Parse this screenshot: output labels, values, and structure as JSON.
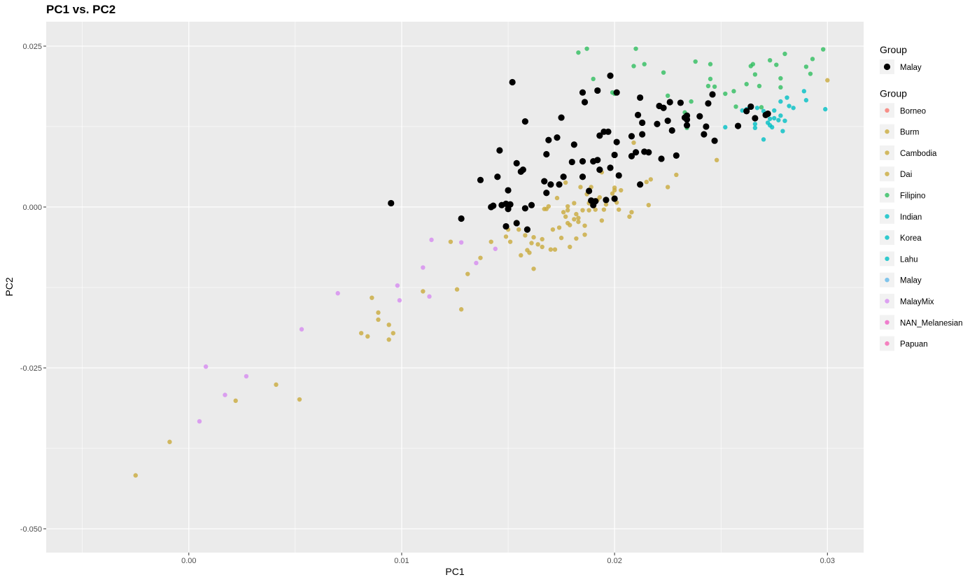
{
  "chart_data": {
    "type": "scatter",
    "title": "PC1 vs. PC2",
    "xlabel": "PC1",
    "ylabel": "PC2",
    "xlim": [
      -0.0067,
      0.0317
    ],
    "ylim": [
      -0.0537,
      0.0288
    ],
    "x_ticks": [
      0.0,
      0.01,
      0.02,
      0.03
    ],
    "x_tick_labels": [
      "0.00",
      "0.01",
      "0.02",
      "0.03"
    ],
    "y_ticks": [
      0.025,
      0.0,
      -0.025,
      -0.05
    ],
    "y_tick_labels": [
      "0.025",
      "0.000",
      "-0.025",
      "-0.050"
    ],
    "grid": true,
    "legend_position": "right",
    "legends": [
      {
        "title": "Group",
        "entries": [
          {
            "label": "Malay",
            "color": "#000000",
            "shape": "large"
          }
        ]
      },
      {
        "title": "Group",
        "entries": [
          {
            "label": "Borneo",
            "color": "#F8766D"
          },
          {
            "label": "Burm",
            "color": "#C9AA3C"
          },
          {
            "label": "Cambodia",
            "color": "#C9AA3C"
          },
          {
            "label": "Dai",
            "color": "#C9AA3C"
          },
          {
            "label": "Filipino",
            "color": "#2FBE5F"
          },
          {
            "label": "Indian",
            "color": "#00BFC4"
          },
          {
            "label": "Korea",
            "color": "#00BFC4"
          },
          {
            "label": "Lahu",
            "color": "#00BFC4"
          },
          {
            "label": "Malay",
            "color": "#61B8E8"
          },
          {
            "label": "MalayMix",
            "color": "#D68BF0"
          },
          {
            "label": "NAN_Melanesian",
            "color": "#EE5FC3"
          },
          {
            "label": "Papuan",
            "color": "#F565B2"
          }
        ]
      }
    ],
    "series": [
      {
        "name": "Malay",
        "color": "#000000",
        "size": "large",
        "points": [
          [
            0.0095,
            0.0006
          ],
          [
            0.0128,
            -0.0018
          ],
          [
            0.0137,
            0.0042
          ],
          [
            0.0142,
            0.0
          ],
          [
            0.0143,
            0.0002
          ],
          [
            0.0145,
            0.0047
          ],
          [
            0.0146,
            0.0088
          ],
          [
            0.0147,
            0.0003
          ],
          [
            0.0149,
            0.0005
          ],
          [
            0.0149,
            -0.003
          ],
          [
            0.015,
            0.0026
          ],
          [
            0.015,
            -0.0003
          ],
          [
            0.0151,
            0.0004
          ],
          [
            0.0152,
            0.0194
          ],
          [
            0.0154,
            0.0068
          ],
          [
            0.0154,
            -0.0025
          ],
          [
            0.0156,
            0.0055
          ],
          [
            0.0157,
            0.0058
          ],
          [
            0.0158,
            0.0133
          ],
          [
            0.0158,
            -0.0002
          ],
          [
            0.0159,
            -0.0035
          ],
          [
            0.0161,
            0.0003
          ],
          [
            0.0167,
            0.004
          ],
          [
            0.0168,
            0.0082
          ],
          [
            0.0168,
            0.0022
          ],
          [
            0.0169,
            0.0104
          ],
          [
            0.017,
            0.0035
          ],
          [
            0.0173,
            0.0108
          ],
          [
            0.0174,
            0.0035
          ],
          [
            0.0175,
            0.0139
          ],
          [
            0.0176,
            0.0047
          ],
          [
            0.018,
            0.007
          ],
          [
            0.0181,
            0.0097
          ],
          [
            0.0185,
            0.0071
          ],
          [
            0.0185,
            0.0047
          ],
          [
            0.0185,
            0.0178
          ],
          [
            0.0186,
            0.0163
          ],
          [
            0.0188,
            0.0025
          ],
          [
            0.0189,
            0.001
          ],
          [
            0.019,
            0.0071
          ],
          [
            0.019,
            0.0003
          ],
          [
            0.0191,
            0.0009
          ],
          [
            0.0192,
            0.0181
          ],
          [
            0.0192,
            0.0073
          ],
          [
            0.0193,
            0.0058
          ],
          [
            0.0193,
            0.0111
          ],
          [
            0.0195,
            0.0117
          ],
          [
            0.0196,
            0.0011
          ],
          [
            0.0197,
            0.0117
          ],
          [
            0.0198,
            0.0204
          ],
          [
            0.0198,
            0.0061
          ],
          [
            0.02,
            0.0013
          ],
          [
            0.02,
            0.0081
          ],
          [
            0.0201,
            0.0101
          ],
          [
            0.0201,
            0.0178
          ],
          [
            0.0202,
            0.0049
          ],
          [
            0.0208,
            0.0079
          ],
          [
            0.0208,
            0.011
          ],
          [
            0.021,
            0.0085
          ],
          [
            0.0211,
            0.0143
          ],
          [
            0.0212,
            0.017
          ],
          [
            0.0212,
            0.0035
          ],
          [
            0.0213,
            0.0113
          ],
          [
            0.0213,
            0.0131
          ],
          [
            0.0214,
            0.0086
          ],
          [
            0.0216,
            0.0085
          ],
          [
            0.022,
            0.0129
          ],
          [
            0.0221,
            0.0157
          ],
          [
            0.0222,
            0.0075
          ],
          [
            0.0223,
            0.0154
          ],
          [
            0.0225,
            0.0134
          ],
          [
            0.0226,
            0.0163
          ],
          [
            0.0227,
            0.0119
          ],
          [
            0.0229,
            0.008
          ],
          [
            0.0231,
            0.0162
          ],
          [
            0.0233,
            0.0139
          ],
          [
            0.0234,
            0.0142
          ],
          [
            0.0234,
            0.0127
          ],
          [
            0.0234,
            0.0136
          ],
          [
            0.024,
            0.0141
          ],
          [
            0.0242,
            0.0113
          ],
          [
            0.0243,
            0.0125
          ],
          [
            0.0244,
            0.0161
          ],
          [
            0.0246,
            0.0175
          ],
          [
            0.0247,
            0.0103
          ],
          [
            0.0258,
            0.0126
          ],
          [
            0.0262,
            0.0149
          ],
          [
            0.0264,
            0.0156
          ],
          [
            0.0266,
            0.0138
          ],
          [
            0.0271,
            0.0143
          ],
          [
            0.0272,
            0.0145
          ]
        ]
      },
      {
        "name": "Burm",
        "color": "#C9AA3C",
        "size": "small",
        "points": [
          [
            -0.0025,
            -0.0417
          ],
          [
            -0.0009,
            -0.0365
          ],
          [
            0.0022,
            -0.0301
          ],
          [
            0.0041,
            -0.0276
          ],
          [
            0.0052,
            -0.0299
          ],
          [
            0.0081,
            -0.0196
          ],
          [
            0.0084,
            -0.0201
          ],
          [
            0.0086,
            -0.0141
          ],
          [
            0.0089,
            -0.0164
          ],
          [
            0.0089,
            -0.0175
          ],
          [
            0.0094,
            -0.0183
          ],
          [
            0.0094,
            -0.0206
          ],
          [
            0.0096,
            -0.0196
          ],
          [
            0.011,
            -0.0131
          ],
          [
            0.0123,
            -0.0054
          ],
          [
            0.0126,
            -0.0128
          ],
          [
            0.0128,
            -0.0159
          ],
          [
            0.0131,
            -0.0104
          ],
          [
            0.0137,
            -0.0079
          ],
          [
            0.0142,
            -0.0054
          ],
          [
            0.0149,
            -0.0046
          ],
          [
            0.015,
            -0.0035
          ],
          [
            0.0151,
            -0.0054
          ],
          [
            0.0155,
            -0.0035
          ],
          [
            0.0156,
            -0.0075
          ],
          [
            0.0158,
            -0.0044
          ],
          [
            0.0159,
            -0.0067
          ],
          [
            0.016,
            -0.0071
          ],
          [
            0.0161,
            -0.0056
          ],
          [
            0.0162,
            -0.0047
          ],
          [
            0.0162,
            -0.0096
          ],
          [
            0.0164,
            -0.0058
          ],
          [
            0.0166,
            -0.0062
          ],
          [
            0.0166,
            -0.005
          ],
          [
            0.0167,
            -0.0003
          ],
          [
            0.0168,
            -0.0003
          ],
          [
            0.0169,
            0.0001
          ],
          [
            0.017,
            -0.0066
          ],
          [
            0.0171,
            -0.0035
          ],
          [
            0.0172,
            -0.0066
          ],
          [
            0.0173,
            0.0014
          ],
          [
            0.0174,
            -0.0032
          ],
          [
            0.0175,
            -0.0048
          ],
          [
            0.0176,
            -0.0008
          ],
          [
            0.0177,
            0.0038
          ],
          [
            0.0177,
            -0.0015
          ],
          [
            0.0178,
            -0.0005
          ],
          [
            0.0178,
            -0.0025
          ],
          [
            0.0178,
            0.0001
          ],
          [
            0.0179,
            -0.0062
          ],
          [
            0.0179,
            -0.0028
          ],
          [
            0.0181,
            -0.0019
          ],
          [
            0.0181,
            0.0006
          ],
          [
            0.0182,
            -0.0049
          ],
          [
            0.0182,
            -0.0011
          ],
          [
            0.0183,
            -0.0017
          ],
          [
            0.0183,
            -0.0023
          ],
          [
            0.0184,
            0.0031
          ],
          [
            0.0185,
            -0.0005
          ],
          [
            0.0186,
            -0.0029
          ],
          [
            0.0186,
            -0.0043
          ],
          [
            0.0187,
            0.002
          ],
          [
            0.0188,
            0.0006
          ],
          [
            0.0188,
            -0.0005
          ],
          [
            0.0189,
            0.0031
          ],
          [
            0.0191,
            -0.0004
          ],
          [
            0.0192,
            0.0011
          ],
          [
            0.0193,
            0.0015
          ],
          [
            0.0194,
            -0.0021
          ],
          [
            0.0194,
            0.0054
          ],
          [
            0.0195,
            -0.0004
          ],
          [
            0.0196,
            0.0004
          ],
          [
            0.0199,
            0.0021
          ],
          [
            0.02,
            0.003
          ],
          [
            0.02,
            0.0026
          ],
          [
            0.0201,
            0.0007
          ],
          [
            0.0202,
            -0.0004
          ],
          [
            0.0203,
            0.0026
          ],
          [
            0.0207,
            -0.0015
          ],
          [
            0.0208,
            -0.0008
          ],
          [
            0.0209,
            0.01
          ],
          [
            0.0215,
            0.0039
          ],
          [
            0.0216,
            0.0003
          ],
          [
            0.0217,
            0.0043
          ],
          [
            0.0225,
            0.0031
          ],
          [
            0.0229,
            0.005
          ],
          [
            0.0248,
            0.0073
          ],
          [
            0.03,
            0.0197
          ]
        ]
      },
      {
        "name": "Filipino",
        "color": "#2FBE5F",
        "size": "small",
        "points": [
          [
            0.0183,
            0.024
          ],
          [
            0.0187,
            0.0246
          ],
          [
            0.019,
            0.0199
          ],
          [
            0.0199,
            0.0178
          ],
          [
            0.02,
            0.0176
          ],
          [
            0.0209,
            0.0219
          ],
          [
            0.021,
            0.0246
          ],
          [
            0.0214,
            0.0222
          ],
          [
            0.0223,
            0.0209
          ],
          [
            0.0225,
            0.0173
          ],
          [
            0.0233,
            0.0147
          ],
          [
            0.0234,
            0.0123
          ],
          [
            0.0236,
            0.0164
          ],
          [
            0.0238,
            0.0226
          ],
          [
            0.0244,
            0.0188
          ],
          [
            0.0245,
            0.0199
          ],
          [
            0.0245,
            0.0222
          ],
          [
            0.0247,
            0.0187
          ],
          [
            0.0252,
            0.0176
          ],
          [
            0.0256,
            0.018
          ],
          [
            0.0257,
            0.0156
          ],
          [
            0.0262,
            0.0191
          ],
          [
            0.0264,
            0.0219
          ],
          [
            0.0265,
            0.0222
          ],
          [
            0.0266,
            0.0206
          ],
          [
            0.0268,
            0.0188
          ],
          [
            0.0269,
            0.0155
          ],
          [
            0.0273,
            0.0228
          ],
          [
            0.0276,
            0.0221
          ],
          [
            0.0278,
            0.02
          ],
          [
            0.0278,
            0.0186
          ],
          [
            0.028,
            0.0238
          ],
          [
            0.029,
            0.0218
          ],
          [
            0.0292,
            0.0207
          ],
          [
            0.0293,
            0.023
          ],
          [
            0.0298,
            0.0245
          ]
        ]
      },
      {
        "name": "Indian",
        "color": "#00BFC4",
        "size": "small",
        "points": [
          [
            0.0252,
            0.0124
          ],
          [
            0.026,
            0.015
          ],
          [
            0.0262,
            0.0152
          ],
          [
            0.0266,
            0.0123
          ],
          [
            0.0266,
            0.0129
          ],
          [
            0.0267,
            0.0154
          ],
          [
            0.027,
            0.0105
          ],
          [
            0.027,
            0.0149
          ],
          [
            0.0272,
            0.0131
          ],
          [
            0.0273,
            0.0127
          ],
          [
            0.0273,
            0.0137
          ],
          [
            0.0274,
            0.0124
          ],
          [
            0.0275,
            0.0138
          ],
          [
            0.0275,
            0.015
          ],
          [
            0.0277,
            0.0135
          ],
          [
            0.0278,
            0.0142
          ],
          [
            0.0278,
            0.0164
          ],
          [
            0.0279,
            0.0118
          ],
          [
            0.028,
            0.0134
          ],
          [
            0.0281,
            0.017
          ],
          [
            0.0282,
            0.0157
          ],
          [
            0.0284,
            0.0154
          ],
          [
            0.0289,
            0.018
          ],
          [
            0.029,
            0.0166
          ],
          [
            0.0299,
            0.0152
          ]
        ]
      },
      {
        "name": "MalayMix",
        "color": "#D68BF0",
        "size": "small",
        "points": [
          [
            0.0005,
            -0.0333
          ],
          [
            0.0008,
            -0.0248
          ],
          [
            0.0017,
            -0.0292
          ],
          [
            0.0027,
            -0.0263
          ],
          [
            0.0053,
            -0.019
          ],
          [
            0.007,
            -0.0134
          ],
          [
            0.0098,
            -0.0122
          ],
          [
            0.0099,
            -0.0145
          ],
          [
            0.011,
            -0.0094
          ],
          [
            0.0113,
            -0.0139
          ],
          [
            0.0114,
            -0.0051
          ],
          [
            0.0128,
            -0.0055
          ],
          [
            0.0135,
            -0.0087
          ],
          [
            0.0144,
            -0.0065
          ]
        ]
      }
    ]
  }
}
